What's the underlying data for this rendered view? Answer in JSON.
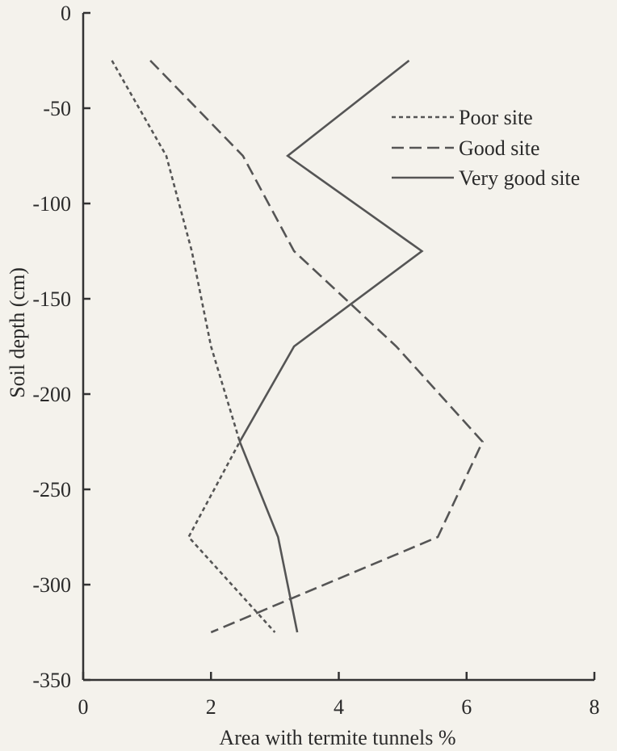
{
  "chart_data": {
    "type": "line",
    "title": "",
    "xlabel": "Area with termite tunnels %",
    "ylabel": "Soil depth (cm)",
    "xlim": [
      0,
      8
    ],
    "ylim": [
      -350,
      0
    ],
    "xticks": [
      0,
      2,
      4,
      6,
      8
    ],
    "yticks": [
      0,
      -50,
      -100,
      -150,
      -200,
      -250,
      -300,
      -350
    ],
    "xtick_labels": [
      "0",
      "2",
      "4",
      "6",
      "8"
    ],
    "ytick_labels": [
      "0",
      "-50",
      "-100",
      "-150",
      "-200",
      "-250",
      "-300",
      "-350"
    ],
    "grid": false,
    "legend_position": "top-right",
    "series": [
      {
        "name": "Poor site",
        "style": "dotted",
        "color": "#555555",
        "points": [
          [
            0.45,
            -25
          ],
          [
            1.3,
            -75
          ],
          [
            1.7,
            -125
          ],
          [
            2.0,
            -175
          ],
          [
            2.45,
            -225
          ],
          [
            1.65,
            -275
          ],
          [
            3.0,
            -325
          ]
        ]
      },
      {
        "name": "Good site",
        "style": "dashed",
        "color": "#555555",
        "points": [
          [
            1.05,
            -25
          ],
          [
            2.5,
            -75
          ],
          [
            3.3,
            -125
          ],
          [
            4.9,
            -175
          ],
          [
            6.25,
            -225
          ],
          [
            5.55,
            -275
          ],
          [
            2.0,
            -325
          ]
        ]
      },
      {
        "name": "Very good site",
        "style": "solid",
        "color": "#555555",
        "points": [
          [
            5.1,
            -25
          ],
          [
            3.2,
            -75
          ],
          [
            5.3,
            -125
          ],
          [
            3.3,
            -175
          ],
          [
            2.45,
            -225
          ],
          [
            3.05,
            -275
          ],
          [
            3.35,
            -325
          ]
        ]
      }
    ]
  }
}
